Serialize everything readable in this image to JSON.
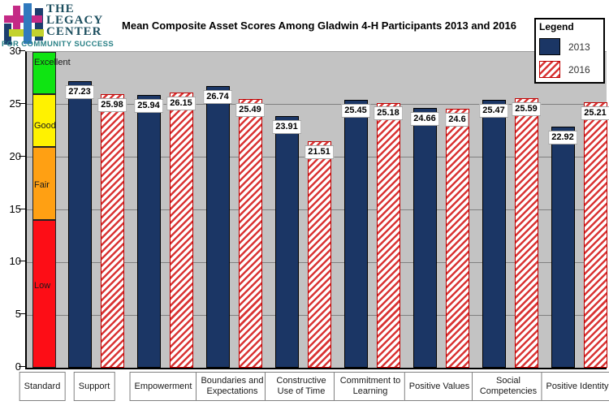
{
  "logo": {
    "line1": "THE",
    "line2": "LEGACY",
    "line3": "CENTER",
    "tagline": "FOR COMMUNITY SUCCESS"
  },
  "title": "Mean Composite Asset Scores Among Gladwin 4-H Participants 2013 and 2016",
  "legend": {
    "title": "Legend",
    "items": [
      {
        "label": "2013",
        "swatch": "solid-navy"
      },
      {
        "label": "2016",
        "swatch": "hatched-red"
      }
    ]
  },
  "colors": {
    "bar_2013": "#1B3665",
    "bar_2013_border": "#000000",
    "bar_2016_stripe": "#D93434",
    "bar_2016_border": "#C00000",
    "plot_bg": "#C3C3C3",
    "gridline": "#808080",
    "logo_magenta": "#C42A86",
    "logo_blue": "#3079BE",
    "logo_navy": "#1C3E6E",
    "logo_green": "#C3D22E",
    "logo_text": "#1D4F5F",
    "logo_tagline": "#2A8186"
  },
  "chart_data": {
    "type": "bar",
    "title": "Mean Composite Asset Scores Among Gladwin 4-H Participants 2013 and 2016",
    "categories": [
      "Support",
      "Empowerment",
      "Boundaries and Expectations",
      "Constructive Use of Time",
      "Commitment to Learning",
      "Positive Values",
      "Social Competencies",
      "Positive Identity"
    ],
    "series": [
      {
        "name": "2013",
        "values": [
          27.23,
          25.94,
          26.74,
          23.91,
          25.45,
          24.66,
          25.47,
          22.92
        ]
      },
      {
        "name": "2016",
        "values": [
          25.98,
          26.15,
          25.49,
          21.51,
          25.18,
          24.6,
          25.59,
          25.21
        ]
      }
    ],
    "ylim": [
      0,
      30
    ],
    "yticks": [
      0,
      5,
      10,
      15,
      20,
      25,
      30
    ],
    "grid": true,
    "legend_position": "top-right",
    "standard_column": {
      "label": "Standard",
      "segments": [
        {
          "label": "Low",
          "from": 0,
          "to": 14,
          "color": "#FD0D16"
        },
        {
          "label": "Fair",
          "from": 14,
          "to": 21,
          "color": "#FFA013"
        },
        {
          "label": "Good",
          "from": 21,
          "to": 26,
          "color": "#FFF200"
        },
        {
          "label": "Excellent",
          "from": 26,
          "to": 30,
          "color": "#0FE412"
        }
      ]
    }
  }
}
